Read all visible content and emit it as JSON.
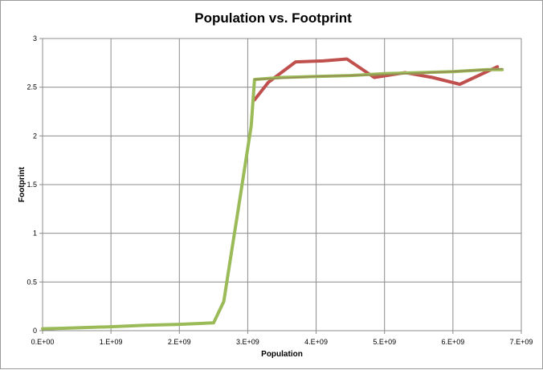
{
  "chart_data": {
    "type": "line",
    "title": "Population vs. Footprint",
    "xlabel": "Population",
    "ylabel": "Footprint",
    "xlim": [
      0,
      7000000000
    ],
    "ylim": [
      0,
      3
    ],
    "x_ticks": [
      0,
      1000000000,
      2000000000,
      3000000000,
      4000000000,
      5000000000,
      6000000000,
      7000000000
    ],
    "x_tick_labels": [
      "0.E+00",
      "1.E+09",
      "2.E+09",
      "3.E+09",
      "4.E+09",
      "5.E+09",
      "6.E+09",
      "7.E+09"
    ],
    "y_ticks": [
      0,
      0.5,
      1,
      1.5,
      2,
      2.5,
      3
    ],
    "y_tick_labels": [
      "0",
      "0.5",
      "1",
      "1.5",
      "2",
      "2.5",
      "3"
    ],
    "grid": true,
    "legend": "none",
    "series": [
      {
        "color": "#2a2a7a",
        "points": [
          [
            0,
            0.01
          ],
          [
            500000000,
            0.025
          ],
          [
            1000000000,
            0.04
          ],
          [
            1500000000,
            0.055
          ],
          [
            2000000000,
            0.07
          ],
          [
            2500000000,
            0.08
          ]
        ]
      },
      {
        "color": "#c0504d",
        "points": [
          [
            3100000000,
            2.37
          ],
          [
            3300000000,
            2.55
          ],
          [
            3700000000,
            2.76
          ],
          [
            4100000000,
            2.77
          ],
          [
            4450000000,
            2.79
          ],
          [
            4850000000,
            2.6
          ],
          [
            5300000000,
            2.65
          ],
          [
            5700000000,
            2.6
          ],
          [
            6100000000,
            2.53
          ],
          [
            6650000000,
            2.71
          ]
        ]
      },
      {
        "color": "#9bbb59",
        "points": [
          [
            0,
            0.02
          ],
          [
            300000000,
            0.025
          ],
          [
            1000000000,
            0.04
          ],
          [
            1500000000,
            0.055
          ],
          [
            2000000000,
            0.065
          ],
          [
            2500000000,
            0.08
          ],
          [
            2650000000,
            0.3
          ],
          [
            2750000000,
            0.75
          ],
          [
            2850000000,
            1.2
          ],
          [
            2950000000,
            1.65
          ],
          [
            3050000000,
            2.1
          ],
          [
            3100000000,
            2.58
          ],
          [
            3500000000,
            2.6
          ],
          [
            4000000000,
            2.61
          ],
          [
            4500000000,
            2.62
          ],
          [
            5000000000,
            2.64
          ],
          [
            5500000000,
            2.65
          ],
          [
            6000000000,
            2.66
          ],
          [
            6500000000,
            2.68
          ],
          [
            6720000000,
            2.68
          ]
        ]
      },
      {
        "color": "#948a54",
        "points": [
          [
            3100000000,
            2.58
          ],
          [
            4000000000,
            2.61
          ],
          [
            5000000000,
            2.63
          ],
          [
            6000000000,
            2.66
          ],
          [
            6720000000,
            2.69
          ]
        ]
      }
    ]
  }
}
